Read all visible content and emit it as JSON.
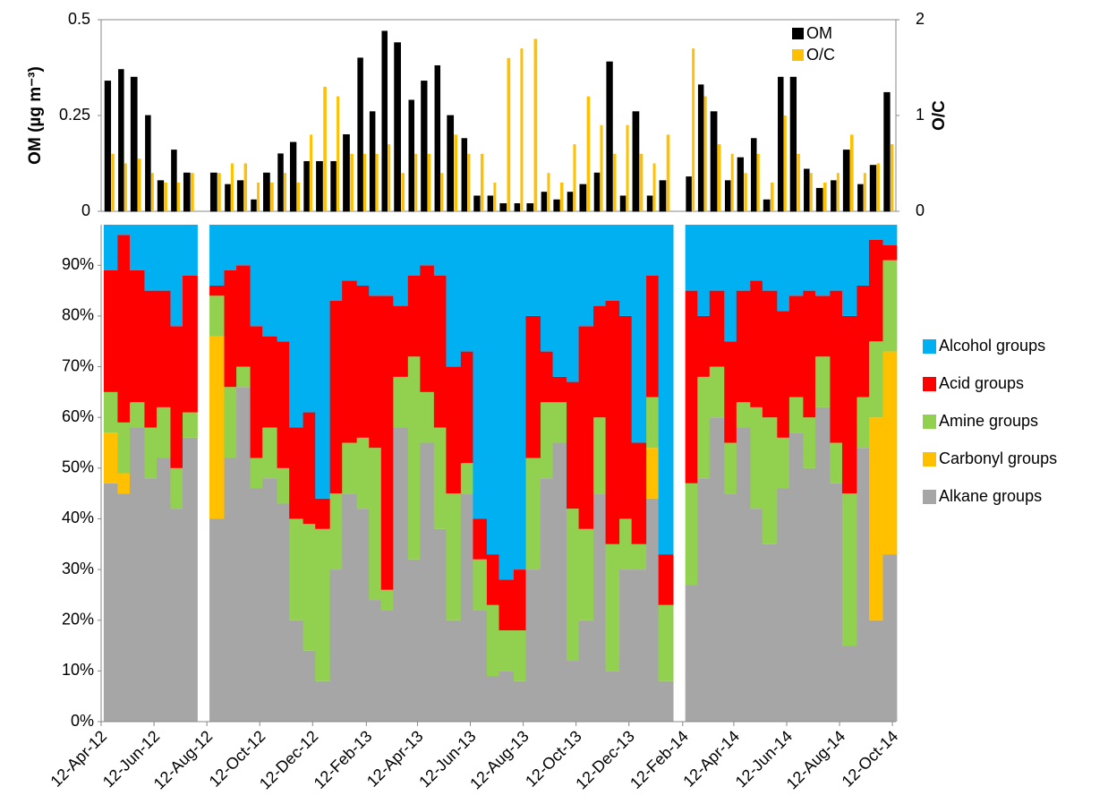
{
  "chart_data": [
    {
      "type": "bar",
      "ylabel": "OM (µg m⁻³)",
      "y2label": "O/C",
      "x": [
        "2012-04-15",
        "2012-05-01",
        "2012-05-15",
        "2012-06-01",
        "2012-06-15",
        "2012-07-01",
        "2012-07-15",
        "2012-08-01",
        "2012-08-15",
        "2012-09-01",
        "2012-09-15",
        "2012-10-01",
        "2012-10-15",
        "2012-11-01",
        "2012-11-15",
        "2012-12-01",
        "2012-12-15",
        "2013-01-01",
        "2013-01-15",
        "2013-02-01",
        "2013-02-15",
        "2013-03-01",
        "2013-03-15",
        "2013-04-01",
        "2013-04-15",
        "2013-05-01",
        "2013-05-15",
        "2013-06-01",
        "2013-06-15",
        "2013-07-01",
        "2013-07-15",
        "2013-08-01",
        "2013-08-15",
        "2013-09-01",
        "2013-09-15",
        "2013-10-01",
        "2013-10-15",
        "2013-11-01",
        "2013-11-15",
        "2013-12-01",
        "2013-12-15",
        "2014-01-01",
        "2014-01-15",
        "2014-02-01",
        "2014-02-15",
        "2014-03-01",
        "2014-03-15",
        "2014-04-01",
        "2014-04-15",
        "2014-05-01",
        "2014-05-15",
        "2014-06-01",
        "2014-06-15",
        "2014-07-01",
        "2014-07-15",
        "2014-08-01",
        "2014-08-15",
        "2014-09-01",
        "2014-09-15",
        "2014-10-01"
      ],
      "xlim": [
        "2012-04-12",
        "2014-10-16"
      ],
      "ylim": [
        0,
        0.5
      ],
      "yticks": [
        0,
        0.25,
        0.5
      ],
      "y2lim": [
        0,
        2
      ],
      "y2ticks": [
        0,
        1,
        2
      ],
      "series": [
        {
          "name": "OM",
          "color": "#000000",
          "axis": "y",
          "values": [
            0.34,
            0.37,
            0.35,
            0.25,
            0.08,
            0.16,
            0.1,
            null,
            0.1,
            0.07,
            0.08,
            0.03,
            0.1,
            0.15,
            0.18,
            0.13,
            0.13,
            0.13,
            0.2,
            0.4,
            0.26,
            0.47,
            0.44,
            0.29,
            0.34,
            0.38,
            0.25,
            0.19,
            0.04,
            0.04,
            0.02,
            0.02,
            0.02,
            0.05,
            0.03,
            0.05,
            0.07,
            0.1,
            0.39,
            0.04,
            0.26,
            0.04,
            0.08,
            null,
            0.09,
            0.33,
            0.26,
            0.08,
            0.14,
            0.19,
            0.03,
            0.35,
            0.35,
            0.11,
            0.06,
            0.08,
            0.16,
            0.07,
            0.12,
            0.31
          ]
        },
        {
          "name": "O/C",
          "color": "#ffc000",
          "axis": "y2",
          "values": [
            0.6,
            0.5,
            0.55,
            0.4,
            0.3,
            0.3,
            0.4,
            null,
            0.4,
            0.5,
            0.5,
            0.3,
            0.3,
            0.4,
            0.3,
            0.8,
            1.3,
            1.2,
            0.6,
            0.6,
            0.6,
            0.7,
            0.4,
            0.6,
            0.6,
            0.4,
            0.8,
            0.6,
            0.6,
            0.3,
            1.6,
            1.7,
            1.8,
            0.4,
            0.3,
            0.7,
            1.2,
            0.9,
            0.6,
            0.9,
            0.6,
            0.5,
            0.8,
            null,
            1.7,
            1.2,
            0.7,
            0.6,
            0.4,
            0.6,
            0.3,
            1.0,
            0.6,
            0.4,
            0.3,
            0.4,
            0.8,
            0.4,
            0.5,
            0.7
          ]
        }
      ]
    },
    {
      "type": "stacked-bar",
      "x": [
        "2012-04-15",
        "2012-05-01",
        "2012-05-15",
        "2012-06-01",
        "2012-06-15",
        "2012-07-01",
        "2012-07-15",
        "2012-08-01",
        "2012-08-15",
        "2012-09-01",
        "2012-09-15",
        "2012-10-01",
        "2012-10-15",
        "2012-11-01",
        "2012-11-15",
        "2012-12-01",
        "2012-12-15",
        "2013-01-01",
        "2013-01-15",
        "2013-02-01",
        "2013-02-15",
        "2013-03-01",
        "2013-03-15",
        "2013-04-01",
        "2013-04-15",
        "2013-05-01",
        "2013-05-15",
        "2013-06-01",
        "2013-06-15",
        "2013-07-01",
        "2013-07-15",
        "2013-08-01",
        "2013-08-15",
        "2013-09-01",
        "2013-09-15",
        "2013-10-01",
        "2013-10-15",
        "2013-11-01",
        "2013-11-15",
        "2013-12-01",
        "2013-12-15",
        "2014-01-01",
        "2014-01-15",
        "2014-02-01",
        "2014-02-15",
        "2014-03-01",
        "2014-03-15",
        "2014-04-01",
        "2014-04-15",
        "2014-05-01",
        "2014-05-15",
        "2014-06-01",
        "2014-06-15",
        "2014-07-01",
        "2014-07-15",
        "2014-08-01",
        "2014-08-15",
        "2014-09-01",
        "2014-09-15",
        "2014-10-01"
      ],
      "xlim": [
        "2012-04-12",
        "2014-10-16"
      ],
      "xticks": [
        {
          "value": "2012-04-12",
          "label": "12-Apr-12"
        },
        {
          "value": "2012-06-12",
          "label": "12-Jun-12"
        },
        {
          "value": "2012-08-12",
          "label": "12-Aug-12"
        },
        {
          "value": "2012-10-12",
          "label": "12-Oct-12"
        },
        {
          "value": "2012-12-12",
          "label": "12-Dec-12"
        },
        {
          "value": "2013-02-12",
          "label": "12-Feb-13"
        },
        {
          "value": "2013-04-12",
          "label": "12-Apr-13"
        },
        {
          "value": "2013-06-12",
          "label": "12-Jun-13"
        },
        {
          "value": "2013-08-12",
          "label": "12-Aug-13"
        },
        {
          "value": "2013-10-12",
          "label": "12-Oct-13"
        },
        {
          "value": "2013-12-12",
          "label": "12-Dec-13"
        },
        {
          "value": "2014-02-12",
          "label": "12-Feb-14"
        },
        {
          "value": "2014-04-12",
          "label": "12-Apr-14"
        },
        {
          "value": "2014-06-12",
          "label": "12-Jun-14"
        },
        {
          "value": "2014-08-12",
          "label": "12-Aug-14"
        },
        {
          "value": "2014-10-12",
          "label": "12-Oct-14"
        }
      ],
      "ylim": [
        0,
        98
      ],
      "yticks": [
        {
          "value": 0,
          "label": "0%"
        },
        {
          "value": 10,
          "label": "10%"
        },
        {
          "value": 20,
          "label": "20%"
        },
        {
          "value": 30,
          "label": "30%"
        },
        {
          "value": 40,
          "label": "40%"
        },
        {
          "value": 50,
          "label": "50%"
        },
        {
          "value": 60,
          "label": "60%"
        },
        {
          "value": 70,
          "label": "70%"
        },
        {
          "value": 80,
          "label": "80%"
        },
        {
          "value": 90,
          "label": "90%"
        }
      ],
      "series": [
        {
          "name": "Alkane groups",
          "color": "#a6a6a6",
          "values": [
            47,
            45,
            58,
            48,
            52,
            42,
            56,
            null,
            40,
            52,
            66,
            46,
            48,
            43,
            20,
            14,
            8,
            30,
            45,
            42,
            24,
            22,
            58,
            32,
            55,
            38,
            20,
            45,
            22,
            9,
            10,
            8,
            30,
            48,
            55,
            12,
            20,
            45,
            10,
            30,
            30,
            44,
            8,
            null,
            27,
            48,
            60,
            45,
            58,
            42,
            35,
            46,
            57,
            50,
            62,
            47,
            15,
            54,
            20,
            33
          ]
        },
        {
          "name": "Carbonyl groups",
          "color": "#ffc000",
          "values": [
            10,
            4,
            0,
            0,
            0,
            0,
            0,
            null,
            36,
            0,
            0,
            0,
            0,
            0,
            0,
            0,
            0,
            0,
            0,
            0,
            0,
            0,
            0,
            0,
            0,
            0,
            0,
            0,
            0,
            0,
            0,
            0,
            0,
            0,
            0,
            0,
            0,
            0,
            0,
            0,
            0,
            10,
            0,
            null,
            0,
            0,
            0,
            0,
            0,
            0,
            0,
            0,
            0,
            0,
            0,
            0,
            0,
            0,
            40,
            40
          ]
        },
        {
          "name": "Amine groups",
          "color": "#92d050",
          "values": [
            8,
            10,
            5,
            10,
            10,
            8,
            5,
            null,
            8,
            14,
            4,
            6,
            10,
            7,
            20,
            25,
            30,
            15,
            10,
            14,
            30,
            4,
            10,
            40,
            10,
            20,
            25,
            6,
            10,
            14,
            8,
            10,
            22,
            15,
            8,
            30,
            18,
            15,
            25,
            10,
            5,
            10,
            15,
            null,
            20,
            20,
            10,
            10,
            5,
            20,
            25,
            10,
            7,
            10,
            10,
            8,
            30,
            10,
            15,
            18
          ]
        },
        {
          "name": "Acid groups",
          "color": "#ff0000",
          "values": [
            24,
            37,
            26,
            27,
            23,
            28,
            27,
            null,
            2,
            23,
            20,
            26,
            18,
            25,
            18,
            22,
            6,
            38,
            32,
            30,
            30,
            58,
            14,
            16,
            25,
            30,
            25,
            22,
            8,
            10,
            10,
            12,
            28,
            10,
            5,
            25,
            40,
            22,
            48,
            40,
            20,
            24,
            10,
            null,
            38,
            12,
            15,
            20,
            22,
            25,
            25,
            25,
            20,
            25,
            12,
            30,
            35,
            22,
            20,
            3
          ]
        },
        {
          "name": "Alcohol groups",
          "color": "#00b0f0",
          "values": [
            9,
            2,
            9,
            13,
            13,
            20,
            10,
            null,
            12,
            9,
            8,
            20,
            22,
            23,
            40,
            37,
            54,
            15,
            11,
            12,
            14,
            14,
            16,
            10,
            8,
            10,
            28,
            25,
            58,
            65,
            70,
            68,
            18,
            25,
            30,
            31,
            20,
            16,
            15,
            18,
            43,
            10,
            65,
            null,
            13,
            18,
            13,
            23,
            13,
            11,
            13,
            17,
            14,
            13,
            14,
            13,
            18,
            12,
            3,
            4
          ]
        }
      ]
    }
  ]
}
